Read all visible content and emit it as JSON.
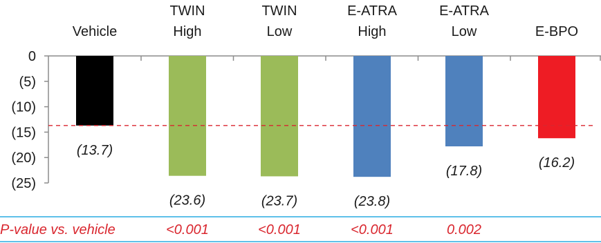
{
  "chart_data": {
    "type": "bar",
    "categories": [
      [
        "Vehicle"
      ],
      [
        "TWIN",
        "High"
      ],
      [
        "TWIN",
        "Low"
      ],
      [
        "E-ATRA",
        "High"
      ],
      [
        "E-ATRA",
        "Low"
      ],
      [
        "E-BPO"
      ]
    ],
    "values": [
      -13.7,
      -23.6,
      -23.7,
      -23.8,
      -17.8,
      -16.2
    ],
    "value_labels": [
      "(13.7)",
      "(23.6)",
      "(23.7)",
      "(23.8)",
      "(17.8)",
      "(16.2)"
    ],
    "bar_colors": [
      "#000000",
      "#9bbb59",
      "#9bbb59",
      "#4f81bd",
      "#4f81bd",
      "#ee1c24"
    ],
    "y_ticks": [
      {
        "value": 0,
        "label": "0"
      },
      {
        "value": -5,
        "label": "(5)"
      },
      {
        "value": -10,
        "label": "(10)"
      },
      {
        "value": -15,
        "label": "(15)"
      },
      {
        "value": -20,
        "label": "(20)"
      },
      {
        "value": -25,
        "label": "(25)"
      }
    ],
    "ylim": [
      -25,
      0
    ],
    "reference_line": {
      "value": -13.7,
      "color": "#d9262e",
      "style": "dashed"
    },
    "grid": false,
    "pvalue_row": {
      "label": "P-value vs. vehicle",
      "values": [
        "",
        "<0.001",
        "<0.001",
        "<0.001",
        "0.002",
        ""
      ],
      "color": "#d9262e",
      "border_color": "#29abe2"
    }
  }
}
